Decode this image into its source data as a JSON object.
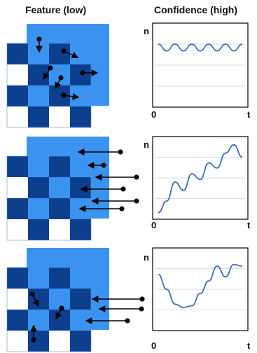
{
  "headers": {
    "left": "Feature (low)",
    "right": "Confidence (high)"
  },
  "axes": {
    "y": "n",
    "x_start": "0",
    "x_end": "t"
  },
  "colors": {
    "light_blue": "#3a93f0",
    "dark_blue": "#0d3f8f",
    "arrow": "#000000",
    "curve": "#3a6cc0",
    "gridline": "#cfcfcf",
    "plot_frame": "#000000"
  },
  "panels": [
    {
      "name": "top",
      "arrows": "inside grid",
      "chart_data": {
        "type": "line",
        "x": [
          0.0,
          0.1,
          0.2,
          0.3,
          0.4,
          0.5,
          0.6,
          0.7,
          0.8,
          0.9,
          1.0
        ],
        "y": [
          0.75,
          0.67,
          0.75,
          0.67,
          0.75,
          0.67,
          0.75,
          0.67,
          0.75,
          0.67,
          0.75
        ],
        "xlabel": "t",
        "ylabel": "n",
        "pattern": "steady oscillation"
      }
    },
    {
      "name": "middle",
      "arrows": "from outside toward grid",
      "chart_data": {
        "type": "line",
        "x": [
          0.0,
          0.1,
          0.2,
          0.3,
          0.4,
          0.5,
          0.6,
          0.7,
          0.8,
          0.9,
          1.0
        ],
        "y": [
          0.08,
          0.22,
          0.45,
          0.35,
          0.55,
          0.48,
          0.68,
          0.62,
          0.8,
          0.9,
          0.75
        ],
        "xlabel": "t",
        "ylabel": "n",
        "pattern": "rising with oscillation"
      }
    },
    {
      "name": "bottom",
      "arrows": "mixed: inside grid and from outside",
      "chart_data": {
        "type": "line",
        "x": [
          0.0,
          0.1,
          0.2,
          0.3,
          0.4,
          0.5,
          0.6,
          0.7,
          0.8,
          0.9,
          1.0
        ],
        "y": [
          0.68,
          0.5,
          0.32,
          0.28,
          0.3,
          0.45,
          0.6,
          0.78,
          0.65,
          0.8,
          0.78
        ],
        "xlabel": "t",
        "ylabel": "n",
        "pattern": "dip then rise"
      }
    }
  ]
}
